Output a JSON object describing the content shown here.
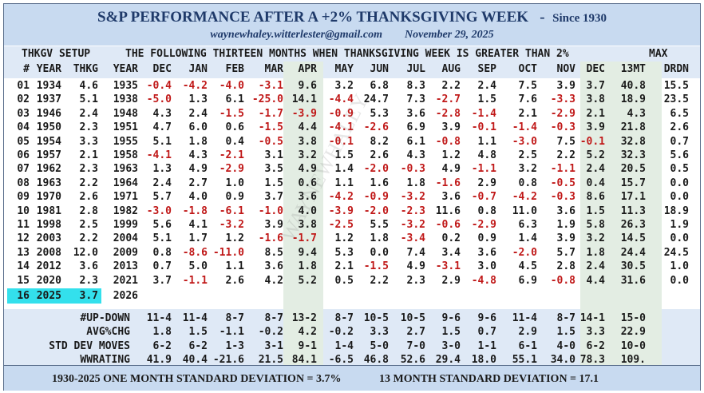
{
  "header": {
    "title": "S&P PERFORMANCE AFTER A +2% THANKSGIVING WEEK   -",
    "since": "Since 1930",
    "email": "waynewhaley.witterlester@gmail.com",
    "date": "November 29, 2025"
  },
  "watermark": "WAYNEWHALEY",
  "colors": {
    "header_bg": "#c8daf0",
    "negative": "#c01818",
    "highlight": "#33e0ec",
    "shade": "#e3ede3"
  },
  "setup_title": "THKGV SETUP",
  "months_title": "THE FOLLOWING THIRTEEN MONTHS WHEN THANKSGIVING WEEK IS GREATER THAN 2%",
  "max_label": "MAX",
  "columns": [
    "#",
    "YEAR",
    "THKG",
    "YEAR",
    "DEC",
    "JAN",
    "FEB",
    "MAR",
    "APR",
    "MAY",
    "JUN",
    "JUL",
    "AUG",
    "SEP",
    "OCT",
    "NOV",
    "DEC",
    "13MT",
    "DRDN"
  ],
  "rows": [
    [
      "01",
      "1934",
      "4.6",
      "1935",
      "-0.4",
      "-4.2",
      "-4.0",
      "-3.1",
      "9.6",
      "3.2",
      "6.8",
      "8.3",
      "2.2",
      "2.4",
      "7.5",
      "3.9",
      "3.7",
      "40.8",
      "15.5"
    ],
    [
      "02",
      "1937",
      "5.1",
      "1938",
      "-5.0",
      "1.3",
      "6.1",
      "-25.0",
      "14.1",
      "-4.4",
      "24.7",
      "7.3",
      "-2.7",
      "1.5",
      "7.6",
      "-3.3",
      "3.8",
      "18.9",
      "23.5"
    ],
    [
      "03",
      "1946",
      "2.4",
      "1948",
      "4.3",
      "2.4",
      "-1.5",
      "-1.7",
      "-3.9",
      "-0.9",
      "5.3",
      "3.6",
      "-2.8",
      "-1.4",
      "2.1",
      "-2.9",
      "2.1",
      "4.3",
      "6.5"
    ],
    [
      "04",
      "1950",
      "2.3",
      "1951",
      "4.7",
      "6.0",
      "0.6",
      "-1.5",
      "4.4",
      "-4.1",
      "-2.6",
      "6.9",
      "3.9",
      "-0.1",
      "-1.4",
      "-0.3",
      "3.9",
      "21.8",
      "2.6"
    ],
    [
      "05",
      "1954",
      "3.3",
      "1955",
      "5.1",
      "1.8",
      "0.4",
      "-0.5",
      "3.8",
      "-0.1",
      "8.2",
      "6.1",
      "-0.8",
      "1.1",
      "-3.0",
      "7.5",
      "-0.1",
      "32.8",
      "0.7"
    ],
    [
      "06",
      "1957",
      "2.1",
      "1958",
      "-4.1",
      "4.3",
      "-2.1",
      "3.1",
      "3.2",
      "1.5",
      "2.6",
      "4.3",
      "1.2",
      "4.8",
      "2.5",
      "2.2",
      "5.2",
      "32.3",
      "5.6"
    ],
    [
      "07",
      "1962",
      "2.3",
      "1963",
      "1.3",
      "4.9",
      "-2.9",
      "3.5",
      "4.9",
      "1.4",
      "-2.0",
      "-0.3",
      "4.9",
      "-1.1",
      "3.2",
      "-1.1",
      "2.4",
      "20.5",
      "0.5"
    ],
    [
      "08",
      "1963",
      "2.2",
      "1964",
      "2.4",
      "2.7",
      "1.0",
      "1.5",
      "0.6",
      "1.1",
      "1.6",
      "1.8",
      "-1.6",
      "2.9",
      "0.8",
      "-0.5",
      "0.4",
      "15.7",
      "0.0"
    ],
    [
      "09",
      "1970",
      "2.6",
      "1971",
      "5.7",
      "4.0",
      "0.9",
      "3.7",
      "3.6",
      "-4.2",
      "-0.9",
      "-3.2",
      "3.6",
      "-0.7",
      "-4.2",
      "-0.3",
      "8.6",
      "17.1",
      "0.0"
    ],
    [
      "10",
      "1981",
      "2.8",
      "1982",
      "-3.0",
      "-1.8",
      "-6.1",
      "-1.0",
      "4.0",
      "-3.9",
      "-2.0",
      "-2.3",
      "11.6",
      "0.8",
      "11.0",
      "3.6",
      "1.5",
      "11.3",
      "18.9"
    ],
    [
      "11",
      "1998",
      "2.5",
      "1999",
      "5.6",
      "4.1",
      "-3.2",
      "3.9",
      "3.8",
      "-2.5",
      "5.5",
      "-3.2",
      "-0.6",
      "-2.9",
      "6.3",
      "1.9",
      "5.8",
      "26.3",
      "1.9"
    ],
    [
      "12",
      "2003",
      "2.2",
      "2004",
      "5.1",
      "1.7",
      "1.2",
      "-1.6",
      "-1.7",
      "1.2",
      "1.8",
      "-3.4",
      "0.2",
      "0.9",
      "1.4",
      "3.9",
      "3.2",
      "14.5",
      "0.0"
    ],
    [
      "13",
      "2008",
      "12.0",
      "2009",
      "0.8",
      "-8.6",
      "-11.0",
      "8.5",
      "9.4",
      "5.3",
      "0.0",
      "7.4",
      "3.4",
      "3.6",
      "-2.0",
      "5.7",
      "1.8",
      "24.4",
      "24.5"
    ],
    [
      "14",
      "2012",
      "3.6",
      "2013",
      "0.7",
      "5.0",
      "1.1",
      "3.6",
      "1.8",
      "2.1",
      "-1.5",
      "4.9",
      "-3.1",
      "3.0",
      "4.5",
      "2.8",
      "2.4",
      "30.5",
      "1.0"
    ],
    [
      "15",
      "2020",
      "2.3",
      "2021",
      "3.7",
      "-1.1",
      "2.6",
      "4.2",
      "5.2",
      "0.5",
      "2.2",
      "2.3",
      "2.9",
      "-4.8",
      "6.9",
      "-0.8",
      "4.4",
      "31.6",
      "0.0"
    ]
  ],
  "current": [
    "16",
    "2025",
    "3.7",
    "2026"
  ],
  "stats": [
    {
      "label": "#UP-DOWN",
      "values": [
        "11-4",
        "11-4",
        "8-7",
        "8-7",
        "13-2",
        "8-7",
        "10-5",
        "10-5",
        "9-6",
        "9-6",
        "11-4",
        "8-7",
        "14-1",
        "15-0"
      ]
    },
    {
      "label": "AVG%CHG",
      "values": [
        "1.8",
        "1.5",
        "-1.1",
        "-0.2",
        "4.2",
        "-0.2",
        "3.3",
        "2.7",
        "1.5",
        "0.7",
        "2.9",
        "1.5",
        "3.3",
        "22.9"
      ]
    },
    {
      "label": "STD DEV MOVES",
      "values": [
        "6-2",
        "6-2",
        "1-3",
        "3-1",
        "9-1",
        "1-4",
        "5-0",
        "7-0",
        "3-0",
        "1-1",
        "6-1",
        "4-0",
        "6-2",
        "10-0"
      ]
    },
    {
      "label": "WWRATING",
      "values": [
        "41.9",
        "40.4",
        "-21.6",
        "21.5",
        "84.1",
        "-6.5",
        "46.8",
        "52.6",
        "29.4",
        "18.0",
        "55.1",
        "34.0",
        "78.3",
        "109."
      ]
    }
  ],
  "footer": {
    "left": "1930-2025 ONE MONTH STANDARD DEVIATION = 3.7%",
    "right": "13 MONTH STANDARD DEVIATION = 17.1"
  }
}
